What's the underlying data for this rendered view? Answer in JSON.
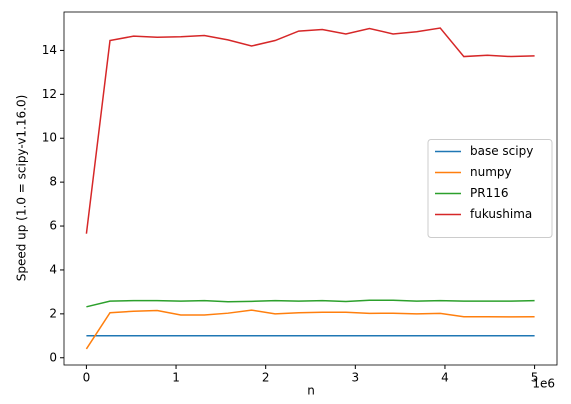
{
  "chart_data": {
    "type": "line",
    "xlabel": "n",
    "ylabel": "Speed up (1.0 = scipy-v1.16.0)",
    "x_offset_label": "1e6",
    "x": [
      0,
      263158,
      526316,
      789474,
      1052632,
      1315789,
      1578947,
      1842105,
      2105263,
      2368421,
      2631579,
      2894737,
      3157895,
      3421053,
      3684211,
      3947368,
      4210526,
      4473684,
      4736842,
      5000000
    ],
    "series": [
      {
        "name": "base scipy",
        "color": "#1f77b4",
        "values": [
          1,
          1,
          1,
          1,
          1,
          1,
          1,
          1,
          1,
          1,
          1,
          1,
          1,
          1,
          1,
          1,
          1,
          1,
          1,
          1
        ]
      },
      {
        "name": "numpy",
        "color": "#ff7f0e",
        "values": [
          0.4,
          2.05,
          2.12,
          2.15,
          1.95,
          1.95,
          2.03,
          2.17,
          2.0,
          2.05,
          2.07,
          2.07,
          2.02,
          2.03,
          2.0,
          2.02,
          1.87,
          1.87,
          1.86,
          1.87
        ]
      },
      {
        "name": "PR116",
        "color": "#2ca02c",
        "values": [
          2.32,
          2.58,
          2.6,
          2.6,
          2.58,
          2.6,
          2.55,
          2.57,
          2.6,
          2.58,
          2.6,
          2.56,
          2.62,
          2.62,
          2.58,
          2.6,
          2.58,
          2.58,
          2.58,
          2.6
        ]
      },
      {
        "name": "fukushima",
        "color": "#d62728",
        "values": [
          5.65,
          14.45,
          14.65,
          14.6,
          14.62,
          14.68,
          14.48,
          14.2,
          14.45,
          14.88,
          14.95,
          14.75,
          15.0,
          14.75,
          14.85,
          15.02,
          13.72,
          13.78,
          13.72,
          13.75
        ]
      }
    ],
    "xlim": [
      -250000,
      5250000
    ],
    "xticks": [
      0,
      {
        "value": 1000000,
        "label": "1"
      },
      {
        "value": 2000000,
        "label": "2"
      },
      {
        "value": 3000000,
        "label": "3"
      },
      {
        "value": 4000000,
        "label": "4"
      },
      {
        "value": 5000000,
        "label": "5"
      }
    ],
    "ylim": [
      -0.33,
      15.75
    ],
    "yticks": [
      0,
      2,
      4,
      6,
      8,
      10,
      12,
      14
    ],
    "grid": false,
    "legend": "center right"
  }
}
